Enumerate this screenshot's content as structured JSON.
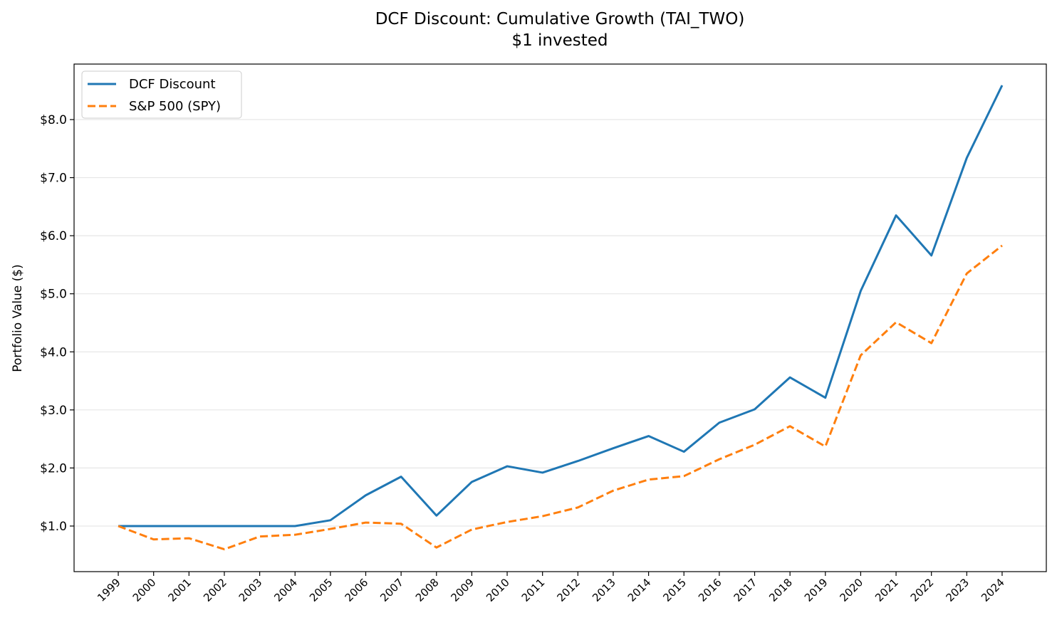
{
  "chart_data": {
    "type": "line",
    "title": "DCF Discount: Cumulative Growth (TAI_TWO)",
    "subtitle": "$1 invested",
    "xlabel": "",
    "ylabel": "Portfolio Value ($)",
    "x": [
      1999,
      2000,
      2001,
      2002,
      2003,
      2004,
      2005,
      2006,
      2007,
      2008,
      2009,
      2010,
      2011,
      2012,
      2013,
      2014,
      2015,
      2016,
      2017,
      2018,
      2019,
      2020,
      2021,
      2022,
      2023,
      2024
    ],
    "xlim": [
      1997.75,
      2025.25
    ],
    "ylim": [
      0.215,
      8.956
    ],
    "yticks": [
      1,
      2,
      3,
      4,
      5,
      6,
      7,
      8
    ],
    "ytick_labels": [
      "$1.0",
      "$2.0",
      "$3.0",
      "$4.0",
      "$5.0",
      "$6.0",
      "$7.0",
      "$8.0"
    ],
    "grid": "horizontal",
    "legend_position": "top-left",
    "series": [
      {
        "name": "DCF Discount",
        "color": "#1f77b4",
        "style": "solid",
        "values": [
          1.0,
          1.0,
          1.0,
          1.0,
          1.0,
          1.0,
          1.1,
          1.53,
          1.85,
          1.18,
          1.76,
          2.03,
          1.92,
          2.12,
          2.34,
          2.55,
          2.28,
          2.78,
          3.01,
          3.56,
          3.21,
          5.05,
          6.35,
          5.66,
          7.34,
          8.59
        ]
      },
      {
        "name": "S&P 500 (SPY)",
        "color": "#ff7f0e",
        "style": "dashed",
        "values": [
          1.0,
          0.77,
          0.79,
          0.6,
          0.82,
          0.85,
          0.95,
          1.06,
          1.04,
          0.63,
          0.94,
          1.07,
          1.17,
          1.32,
          1.61,
          1.8,
          1.86,
          2.15,
          2.4,
          2.72,
          2.37,
          3.94,
          4.51,
          4.15,
          5.35,
          5.83
        ]
      }
    ]
  }
}
